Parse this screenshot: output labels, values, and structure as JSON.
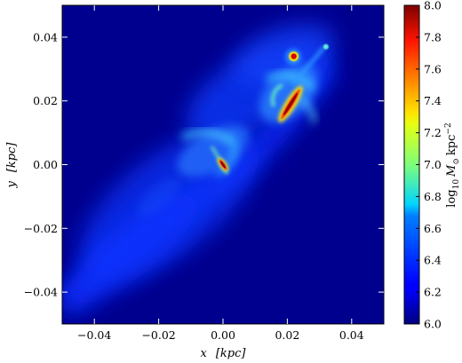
{
  "chart_data": {
    "type": "heatmap",
    "title": "",
    "xlabel_var": "x",
    "xlabel_unit": "[kpc]",
    "ylabel_var": "y",
    "ylabel_unit": "[kpc]",
    "xlim": [
      -0.05,
      0.05
    ],
    "ylim": [
      -0.05,
      0.05
    ],
    "x_ticks": [
      -0.04,
      -0.02,
      0.0,
      0.02,
      0.04
    ],
    "x_tick_labels": [
      "−0.04",
      "−0.02",
      "0.00",
      "0.02",
      "0.04"
    ],
    "y_ticks": [
      -0.04,
      -0.02,
      0.0,
      0.02,
      0.04
    ],
    "y_tick_labels": [
      "−0.04",
      "−0.02",
      "0.00",
      "0.02",
      "0.04"
    ],
    "colorbar": {
      "label_prefix": "log",
      "label_sub": "10",
      "label_var": "M",
      "label_sun": "⊙",
      "label_unit": "kpc",
      "label_exp": "−2",
      "range": [
        6.0,
        8.0
      ],
      "ticks": [
        6.0,
        6.2,
        6.4,
        6.6,
        6.8,
        7.0,
        7.2,
        7.4,
        7.6,
        7.8,
        8.0
      ],
      "tick_labels": [
        "6.0",
        "6.2",
        "6.4",
        "6.6",
        "6.8",
        "7.0",
        "7.2",
        "7.4",
        "7.6",
        "7.8",
        "8.0"
      ],
      "colormap": "jet"
    },
    "features": [
      {
        "name": "central-core",
        "x": 0.0,
        "y": 0.0,
        "peak": 8.0
      },
      {
        "name": "secondary-core",
        "x": 0.021,
        "y": 0.019,
        "peak": 8.0
      },
      {
        "name": "compact-clump",
        "x": 0.022,
        "y": 0.034,
        "peak": 8.0
      },
      {
        "name": "small-knot",
        "x": 0.032,
        "y": 0.037,
        "peak": 6.8
      },
      {
        "name": "diffuse-stream",
        "x": -0.02,
        "y": -0.01,
        "peak": 6.3
      }
    ],
    "grid": false,
    "legend": "none",
    "background_color": "#00008f"
  }
}
